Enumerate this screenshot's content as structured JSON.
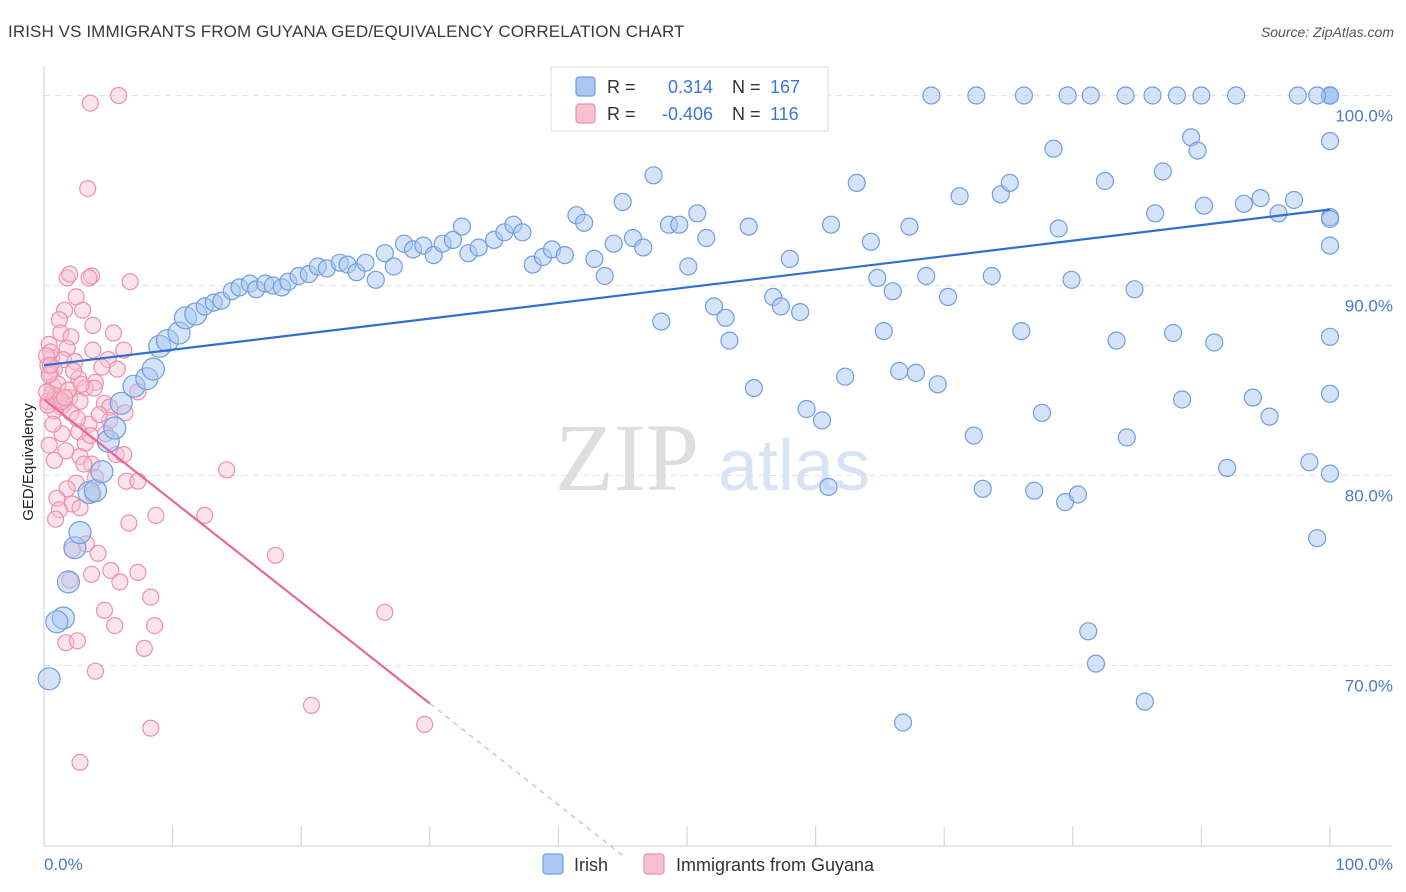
{
  "title": "IRISH VS IMMIGRANTS FROM GUYANA GED/EQUIVALENCY CORRELATION CHART",
  "source": "Source: ZipAtlas.com",
  "watermark": {
    "zip": "ZIP",
    "atlas": "atlas"
  },
  "colors": {
    "irish_fill": "#a9c7f0",
    "irish_stroke": "#6f9fe0",
    "irish_line": "#2f6fd0",
    "guyana_fill": "#f7c1d1",
    "guyana_stroke": "#ee8fae",
    "guyana_line": "#e8679a",
    "axis_label": "#4a7bc8",
    "grid": "#e3e3e3"
  },
  "legend": {
    "r_label": "R =",
    "n_label": "N =",
    "rows": [
      {
        "r": "0.314",
        "n": "167",
        "series": "irish"
      },
      {
        "r": "-0.406",
        "n": "116",
        "series": "guyana"
      }
    ]
  },
  "bottom_legend": [
    "Irish",
    "Immigrants from Guyana"
  ],
  "chart_data": {
    "type": "scatter",
    "title": "IRISH VS IMMIGRANTS FROM GUYANA GED/EQUIVALENCY CORRELATION CHART",
    "xlabel": "",
    "ylabel": "GED/Equivalency",
    "x_tick_labels": [
      "0.0%",
      "100.0%"
    ],
    "y_tick_labels": [
      "100.0%",
      "90.0%",
      "80.0%",
      "70.0%"
    ],
    "y_ticks": [
      100,
      90,
      80,
      70
    ],
    "xlim": [
      0,
      100
    ],
    "ylim": [
      60.5,
      101.5
    ],
    "grid": true,
    "legend_position": "top-center",
    "series": [
      {
        "name": "Irish",
        "r": 0.314,
        "n": 167,
        "trend": {
          "x": [
            0,
            100
          ],
          "y": [
            85.8,
            94.0
          ]
        },
        "points": [
          [
            0.4,
            69.3
          ],
          [
            1.5,
            72.5
          ],
          [
            1.0,
            72.3
          ],
          [
            1.9,
            74.4
          ],
          [
            2.4,
            76.2
          ],
          [
            2.8,
            77.0
          ],
          [
            3.5,
            79.1
          ],
          [
            4.0,
            79.2
          ],
          [
            4.5,
            80.2
          ],
          [
            5.0,
            81.8
          ],
          [
            5.5,
            82.5
          ],
          [
            6.0,
            83.8
          ],
          [
            7.0,
            84.7
          ],
          [
            8.0,
            85.1
          ],
          [
            8.5,
            85.6
          ],
          [
            9.0,
            86.8
          ],
          [
            9.6,
            87.1
          ],
          [
            10.5,
            87.5
          ],
          [
            11.0,
            88.3
          ],
          [
            11.8,
            88.5
          ],
          [
            12.5,
            88.9
          ],
          [
            13.2,
            89.1
          ],
          [
            13.8,
            89.2
          ],
          [
            14.6,
            89.7
          ],
          [
            15.2,
            89.9
          ],
          [
            16.0,
            90.1
          ],
          [
            16.5,
            89.8
          ],
          [
            17.2,
            90.1
          ],
          [
            17.8,
            90.0
          ],
          [
            18.5,
            89.9
          ],
          [
            19.0,
            90.2
          ],
          [
            19.8,
            90.5
          ],
          [
            20.6,
            90.6
          ],
          [
            21.3,
            91.0
          ],
          [
            22.0,
            90.9
          ],
          [
            23.0,
            91.2
          ],
          [
            23.6,
            91.1
          ],
          [
            24.3,
            90.7
          ],
          [
            25.0,
            91.2
          ],
          [
            25.8,
            90.3
          ],
          [
            26.5,
            91.7
          ],
          [
            27.2,
            91.0
          ],
          [
            28.0,
            92.2
          ],
          [
            28.7,
            91.9
          ],
          [
            29.5,
            92.1
          ],
          [
            30.3,
            91.6
          ],
          [
            31.0,
            92.2
          ],
          [
            31.8,
            92.4
          ],
          [
            32.5,
            93.1
          ],
          [
            33.0,
            91.7
          ],
          [
            33.8,
            92.0
          ],
          [
            35.0,
            92.4
          ],
          [
            35.8,
            92.8
          ],
          [
            36.5,
            93.2
          ],
          [
            37.2,
            92.8
          ],
          [
            38.0,
            91.1
          ],
          [
            38.8,
            91.5
          ],
          [
            39.5,
            91.9
          ],
          [
            40.5,
            91.6
          ],
          [
            41.4,
            93.7
          ],
          [
            42.0,
            93.3
          ],
          [
            42.8,
            91.4
          ],
          [
            43.6,
            90.5
          ],
          [
            44.3,
            92.2
          ],
          [
            45.0,
            94.4
          ],
          [
            45.8,
            92.5
          ],
          [
            46.6,
            92.0
          ],
          [
            47.4,
            95.8
          ],
          [
            48.0,
            88.1
          ],
          [
            48.6,
            93.2
          ],
          [
            49.4,
            93.2
          ],
          [
            50.1,
            91.0
          ],
          [
            50.8,
            93.8
          ],
          [
            51.5,
            92.5
          ],
          [
            52.1,
            88.9
          ],
          [
            53.0,
            88.3
          ],
          [
            53.3,
            87.1
          ],
          [
            54.8,
            93.1
          ],
          [
            55.2,
            84.6
          ],
          [
            56.7,
            89.4
          ],
          [
            57.3,
            88.9
          ],
          [
            58.0,
            91.4
          ],
          [
            58.8,
            88.6
          ],
          [
            59.3,
            83.5
          ],
          [
            60.5,
            82.9
          ],
          [
            61.2,
            93.2
          ],
          [
            62.3,
            85.2
          ],
          [
            63.2,
            95.4
          ],
          [
            64.3,
            92.3
          ],
          [
            64.8,
            90.4
          ],
          [
            65.3,
            87.6
          ],
          [
            66.0,
            89.7
          ],
          [
            66.5,
            85.5
          ],
          [
            67.3,
            93.1
          ],
          [
            67.8,
            85.4
          ],
          [
            68.6,
            90.5
          ],
          [
            69.5,
            84.8
          ],
          [
            70.3,
            89.4
          ],
          [
            71.2,
            94.7
          ],
          [
            72.3,
            82.1
          ],
          [
            73.0,
            79.3
          ],
          [
            73.7,
            90.5
          ],
          [
            74.4,
            94.8
          ],
          [
            75.1,
            95.4
          ],
          [
            76.0,
            87.6
          ],
          [
            77.0,
            79.2
          ],
          [
            77.6,
            83.3
          ],
          [
            78.5,
            97.2
          ],
          [
            78.9,
            93.0
          ],
          [
            79.4,
            78.6
          ],
          [
            79.9,
            90.3
          ],
          [
            80.4,
            79.0
          ],
          [
            81.2,
            71.8
          ],
          [
            81.8,
            70.1
          ],
          [
            82.5,
            95.5
          ],
          [
            83.4,
            87.1
          ],
          [
            84.2,
            82.0
          ],
          [
            84.8,
            89.8
          ],
          [
            85.6,
            68.1
          ],
          [
            86.4,
            93.8
          ],
          [
            87.0,
            96.0
          ],
          [
            87.8,
            87.5
          ],
          [
            88.5,
            84.0
          ],
          [
            89.2,
            97.8
          ],
          [
            89.7,
            97.1
          ],
          [
            90.2,
            94.2
          ],
          [
            91.0,
            87.0
          ],
          [
            92.0,
            80.4
          ],
          [
            93.3,
            94.3
          ],
          [
            94.0,
            84.1
          ],
          [
            94.6,
            94.6
          ],
          [
            95.3,
            83.1
          ],
          [
            96.0,
            93.8
          ],
          [
            97.2,
            94.5
          ],
          [
            98.4,
            80.7
          ],
          [
            99.0,
            76.7
          ],
          [
            100.0,
            87.3
          ],
          [
            100.0,
            93.6
          ],
          [
            100.0,
            92.1
          ],
          [
            100.0,
            84.3
          ],
          [
            100.0,
            97.6
          ],
          [
            100.0,
            93.5
          ],
          [
            66.8,
            67.0
          ],
          [
            61.0,
            79.4
          ],
          [
            100.0,
            80.1
          ],
          [
            55.6,
            100.0
          ],
          [
            72.5,
            100.0
          ],
          [
            76.2,
            100.0
          ],
          [
            79.6,
            100.0
          ],
          [
            81.4,
            100.0
          ],
          [
            84.1,
            100.0
          ],
          [
            86.2,
            100.0
          ],
          [
            90.0,
            100.0
          ],
          [
            92.7,
            100.0
          ],
          [
            100.0,
            100.0
          ],
          [
            100.0,
            100.0
          ],
          [
            100.0,
            100.0
          ],
          [
            100.0,
            100.0
          ],
          [
            100.0,
            100.0
          ],
          [
            100.0,
            100.0
          ],
          [
            97.5,
            100.0
          ],
          [
            99.0,
            100.0
          ],
          [
            69.0,
            100.0
          ],
          [
            88.1,
            100.0
          ]
        ]
      },
      {
        "name": "Immigrants from Guyana",
        "r": -0.406,
        "n": 116,
        "trend": {
          "x": [
            0,
            30
          ],
          "y": [
            84.0,
            68.0
          ]
        },
        "trend_extension": {
          "x": [
            30,
            45
          ],
          "y": [
            68.0,
            60.0
          ]
        },
        "points": [
          [
            5.8,
            100.0
          ],
          [
            3.6,
            99.6
          ],
          [
            3.4,
            95.1
          ],
          [
            1.8,
            90.4
          ],
          [
            2.0,
            90.6
          ],
          [
            3.7,
            90.5
          ],
          [
            3.5,
            90.4
          ],
          [
            6.7,
            90.2
          ],
          [
            2.5,
            89.4
          ],
          [
            3.0,
            88.7
          ],
          [
            1.6,
            88.7
          ],
          [
            1.2,
            88.2
          ],
          [
            3.8,
            87.9
          ],
          [
            5.4,
            87.5
          ],
          [
            1.3,
            87.5
          ],
          [
            2.1,
            87.3
          ],
          [
            0.4,
            86.9
          ],
          [
            1.8,
            86.7
          ],
          [
            3.8,
            86.6
          ],
          [
            6.2,
            86.6
          ],
          [
            0.6,
            86.2
          ],
          [
            1.5,
            86.1
          ],
          [
            2.4,
            86.0
          ],
          [
            5.0,
            86.1
          ],
          [
            0.3,
            85.8
          ],
          [
            0.8,
            85.6
          ],
          [
            4.5,
            85.7
          ],
          [
            5.7,
            85.6
          ],
          [
            0.5,
            85.4
          ],
          [
            2.7,
            85.1
          ],
          [
            4.0,
            84.9
          ],
          [
            0.7,
            84.7
          ],
          [
            3.2,
            84.6
          ],
          [
            3.9,
            84.6
          ],
          [
            7.3,
            84.4
          ],
          [
            0.6,
            84.3
          ],
          [
            1.1,
            84.1
          ],
          [
            2.0,
            84.1
          ],
          [
            2.8,
            83.9
          ],
          [
            4.7,
            83.8
          ],
          [
            0.3,
            83.9
          ],
          [
            1.5,
            83.7
          ],
          [
            1.3,
            83.6
          ],
          [
            5.1,
            83.6
          ],
          [
            6.3,
            83.3
          ],
          [
            0.8,
            83.4
          ],
          [
            2.1,
            83.3
          ],
          [
            3.5,
            82.7
          ],
          [
            5.1,
            82.9
          ],
          [
            1.4,
            82.2
          ],
          [
            2.7,
            82.3
          ],
          [
            4.8,
            82.2
          ],
          [
            0.4,
            81.6
          ],
          [
            3.2,
            81.7
          ],
          [
            5.6,
            81.1
          ],
          [
            1.7,
            81.3
          ],
          [
            2.8,
            81.0
          ],
          [
            6.2,
            81.1
          ],
          [
            0.8,
            80.8
          ],
          [
            3.7,
            80.6
          ],
          [
            14.2,
            80.3
          ],
          [
            4.0,
            79.9
          ],
          [
            2.5,
            79.6
          ],
          [
            6.4,
            79.7
          ],
          [
            7.3,
            79.7
          ],
          [
            1.8,
            79.3
          ],
          [
            3.8,
            79.0
          ],
          [
            1.0,
            78.8
          ],
          [
            2.2,
            78.5
          ],
          [
            2.8,
            78.3
          ],
          [
            1.2,
            78.2
          ],
          [
            0.9,
            77.7
          ],
          [
            8.7,
            77.9
          ],
          [
            12.5,
            77.9
          ],
          [
            6.6,
            77.5
          ],
          [
            3.3,
            76.4
          ],
          [
            2.2,
            76.1
          ],
          [
            4.2,
            75.9
          ],
          [
            18.0,
            75.8
          ],
          [
            5.2,
            75.0
          ],
          [
            7.3,
            74.9
          ],
          [
            2.0,
            74.5
          ],
          [
            3.7,
            74.8
          ],
          [
            5.9,
            74.4
          ],
          [
            8.3,
            73.6
          ],
          [
            4.7,
            72.9
          ],
          [
            26.5,
            72.8
          ],
          [
            5.5,
            72.1
          ],
          [
            8.6,
            72.1
          ],
          [
            1.7,
            71.2
          ],
          [
            2.6,
            71.3
          ],
          [
            7.8,
            70.9
          ],
          [
            4.0,
            69.7
          ],
          [
            20.8,
            67.9
          ],
          [
            29.6,
            66.9
          ],
          [
            8.3,
            66.7
          ],
          [
            2.8,
            64.9
          ],
          [
            1.1,
            84.8
          ],
          [
            1.2,
            84.0
          ],
          [
            0.5,
            86.5
          ],
          [
            0.2,
            86.3
          ],
          [
            0.4,
            85.3
          ],
          [
            0.9,
            84.2
          ],
          [
            1.9,
            84.5
          ],
          [
            2.6,
            83.0
          ],
          [
            3.1,
            80.6
          ],
          [
            0.3,
            83.7
          ],
          [
            0.5,
            85.8
          ],
          [
            1.4,
            83.9
          ],
          [
            2.9,
            84.8
          ],
          [
            4.3,
            83.2
          ],
          [
            3.6,
            82.1
          ],
          [
            0.7,
            82.7
          ],
          [
            1.6,
            84.1
          ],
          [
            2.3,
            85.5
          ],
          [
            0.2,
            84.4
          ]
        ]
      }
    ]
  }
}
